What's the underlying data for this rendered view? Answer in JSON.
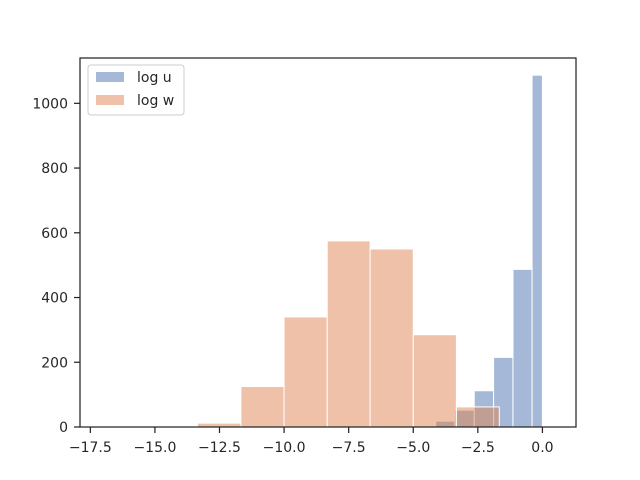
{
  "chart_data": {
    "type": "bar",
    "title": "",
    "xlabel": "",
    "ylabel": "",
    "xlim": [
      -17.9,
      1.3
    ],
    "ylim": [
      0,
      1140
    ],
    "x_ticks": [
      -17.5,
      -15.0,
      -12.5,
      -10.0,
      -7.5,
      -5.0,
      -2.5,
      0.0
    ],
    "x_tick_labels": [
      "−17.5",
      "−15.0",
      "−12.5",
      "−10.0",
      "−7.5",
      "−5.0",
      "−2.5",
      "0.0"
    ],
    "y_ticks": [
      0,
      200,
      400,
      600,
      800,
      1000
    ],
    "y_tick_labels": [
      "0",
      "200",
      "400",
      "600",
      "800",
      "1000"
    ],
    "grid": false,
    "legend_position": "top-left",
    "series": [
      {
        "name": "log u",
        "color": "#4c72b0",
        "opacity": 0.5,
        "bins": [
          {
            "x0": -17.4,
            "x1": -15.64,
            "value": 1
          },
          {
            "x0": -15.64,
            "x1": -13.87,
            "value": 1
          },
          {
            "x0": -4.13,
            "x1": -3.39,
            "value": 18
          },
          {
            "x0": -3.39,
            "x1": -2.64,
            "value": 52
          },
          {
            "x0": -2.64,
            "x1": -1.89,
            "value": 112
          },
          {
            "x0": -1.89,
            "x1": -1.14,
            "value": 215
          },
          {
            "x0": -1.14,
            "x1": -0.4,
            "value": 487
          },
          {
            "x0": -0.4,
            "x1": 0.0,
            "value": 1087
          }
        ]
      },
      {
        "name": "log w",
        "color": "#dd8452",
        "opacity": 0.5,
        "bins": [
          {
            "x0": -13.35,
            "x1": -11.67,
            "value": 12
          },
          {
            "x0": -11.67,
            "x1": -10.0,
            "value": 125
          },
          {
            "x0": -10.0,
            "x1": -8.33,
            "value": 340
          },
          {
            "x0": -8.33,
            "x1": -6.67,
            "value": 575
          },
          {
            "x0": -6.67,
            "x1": -5.0,
            "value": 550
          },
          {
            "x0": -5.0,
            "x1": -3.33,
            "value": 285
          },
          {
            "x0": -3.33,
            "x1": -1.67,
            "value": 62
          }
        ]
      }
    ]
  }
}
